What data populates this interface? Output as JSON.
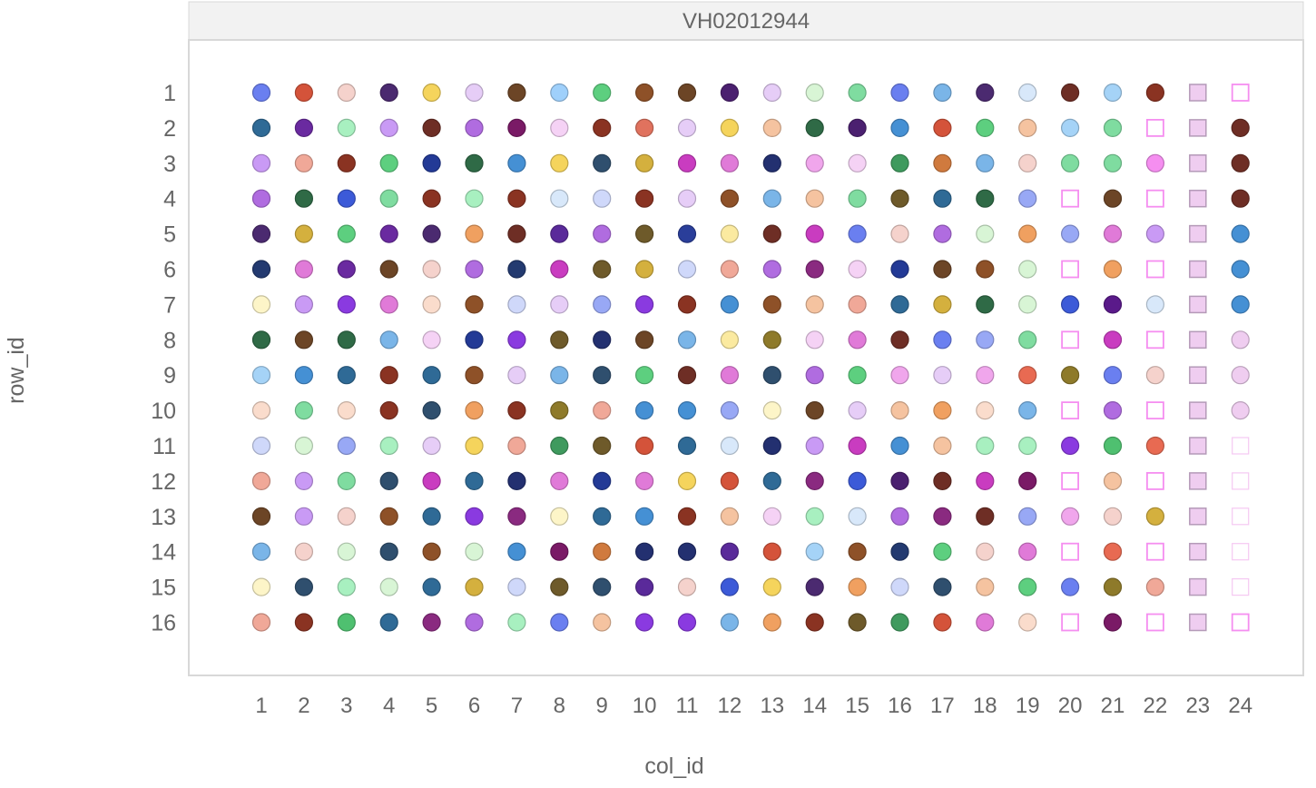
{
  "chart_data": {
    "type": "scatter",
    "title": "VH02012944",
    "xlabel": "col_id",
    "ylabel": "row_id",
    "x_ticks": [
      "1",
      "2",
      "3",
      "4",
      "5",
      "6",
      "7",
      "8",
      "9",
      "10",
      "11",
      "12",
      "13",
      "14",
      "15",
      "16",
      "17",
      "18",
      "19",
      "20",
      "21",
      "22",
      "23",
      "24"
    ],
    "y_ticks": [
      "1",
      "2",
      "3",
      "4",
      "5",
      "6",
      "7",
      "8",
      "9",
      "10",
      "11",
      "12",
      "13",
      "14",
      "15",
      "16"
    ],
    "xlim": [
      1,
      24
    ],
    "ylim": [
      1,
      16
    ],
    "y_reversed": true,
    "grid": false,
    "legend": "none",
    "note_marks": "each point is a well at (col_id, row_id); color encodes well content; markers: c = filled circle, o = open square, s = filled light square, f = faint open square",
    "rows": [
      {
        "row_id": 1,
        "wells": [
          "c:#6a7ff0",
          "c:#d4533a",
          "c:#f5d2cc",
          "c:#4b2a70",
          "c:#f5d45c",
          "c:#e6cdf7",
          "c:#6c4526",
          "c:#9fd0fb",
          "c:#5dcf7f",
          "c:#8e5128",
          "c:#6c4526",
          "c:#4b2070",
          "c:#e6cdf7",
          "c:#d8f5d5",
          "c:#7fdca0",
          "c:#6a7ff0",
          "c:#7ab5e8",
          "c:#4b2a70",
          "c:#d8e8fa",
          "c:#6e2e25",
          "c:#a5d3f7",
          "c:#8a3322",
          "s:#efcdf0",
          "o:#f58ef0"
        ]
      },
      {
        "row_id": 2,
        "wells": [
          "c:#2f6a96",
          "c:#6a2aa0",
          "c:#a8f0c0",
          "c:#c99af5",
          "c:#6e2e25",
          "c:#b06ce0",
          "c:#7a1a66",
          "c:#f5d2f5",
          "c:#8a3322",
          "c:#e0725e",
          "c:#e6cdf7",
          "c:#f5d45c",
          "c:#f5c3a0",
          "c:#2f6a46",
          "c:#4b2070",
          "c:#4590d4",
          "c:#d4533a",
          "c:#5dcf7f",
          "c:#f5c3a0",
          "c:#a5d3f7",
          "c:#7fdca0",
          "o:#f58ef0",
          "s:#efcdf0",
          "c:#6e2e25"
        ]
      },
      {
        "row_id": 3,
        "wells": [
          "c:#c99af5",
          "c:#f0a898",
          "c:#8a3322",
          "c:#5dcf7f",
          "c:#233a96",
          "c:#2f6a46",
          "c:#4590d4",
          "c:#f5d45c",
          "c:#2f4f6e",
          "c:#d4b03e",
          "c:#c93cc0",
          "c:#e07ad8",
          "c:#233070",
          "c:#f0a6ec",
          "c:#f5d2f5",
          "c:#3f9a5e",
          "c:#d07a3e",
          "c:#7ab5e8",
          "c:#f5d2cc",
          "c:#7fdca0",
          "c:#7fdca0",
          "c:#f58ef0",
          "s:#efcdf0",
          "c:#6e2e25"
        ]
      },
      {
        "row_id": 4,
        "wells": [
          "c:#b06ce0",
          "c:#2f6a46",
          "c:#3c5ad8",
          "c:#7fdca0",
          "c:#8a3322",
          "c:#a8f0c0",
          "c:#8a3322",
          "c:#d8e8fa",
          "c:#cfd8fa",
          "c:#8a3322",
          "c:#e6cdf7",
          "c:#8e5128",
          "c:#7ab5e8",
          "c:#f5c3a0",
          "c:#7fdca0",
          "c:#6e5a2a",
          "c:#2f6a96",
          "c:#2f6a46",
          "c:#98a8f5",
          "o:#f58ef0",
          "c:#6c4526",
          "o:#f58ef0",
          "s:#efcdf0",
          "c:#6e2e25"
        ]
      },
      {
        "row_id": 5,
        "wells": [
          "c:#4b2a70",
          "c:#d4b03e",
          "c:#5dcf7f",
          "c:#6a2aa0",
          "c:#4b2a70",
          "c:#f0a060",
          "c:#6e2e25",
          "c:#5a2a9a",
          "c:#b06ce0",
          "c:#6e5a2a",
          "c:#2a3e9a",
          "c:#fbeaa0",
          "c:#6e2e25",
          "c:#c93cc0",
          "c:#6a7ff0",
          "c:#f5d2cc",
          "c:#b06ce0",
          "c:#d8f5d5",
          "c:#f0a060",
          "c:#98a8f5",
          "c:#e07ad8",
          "c:#c99af5",
          "s:#efcdf0",
          "c:#4590d4"
        ]
      },
      {
        "row_id": 6,
        "wells": [
          "c:#233a70",
          "c:#e07ad8",
          "c:#6a2aa0",
          "c:#6c4526",
          "c:#f5d2cc",
          "c:#b06ce0",
          "c:#233a70",
          "c:#c93cc0",
          "c:#6e5a2a",
          "c:#d4b03e",
          "c:#cfd8fa",
          "c:#f0a898",
          "c:#b06ce0",
          "c:#8a2a80",
          "c:#f5d2f5",
          "c:#233a96",
          "c:#6c4526",
          "c:#8e5128",
          "c:#d8f5d5",
          "o:#f58ef0",
          "c:#f0a060",
          "o:#f58ef0",
          "s:#efcdf0",
          "c:#4590d4"
        ]
      },
      {
        "row_id": 7,
        "wells": [
          "c:#fdf5c8",
          "c:#c99af5",
          "c:#8a3ae0",
          "c:#e07ad8",
          "c:#fadccc",
          "c:#8e5128",
          "c:#cfd8fa",
          "c:#e6cdf7",
          "c:#98a8f5",
          "c:#8a3ae0",
          "c:#8a3322",
          "c:#4590d4",
          "c:#8e5128",
          "c:#f5c3a0",
          "c:#f0a898",
          "c:#2f6a96",
          "c:#d4b03e",
          "c:#2f6a46",
          "c:#d8f5d5",
          "c:#3c5ad8",
          "c:#5a1a8a",
          "c:#d8e8fa",
          "s:#efcdf0",
          "c:#4590d4"
        ]
      },
      {
        "row_id": 8,
        "wells": [
          "c:#2f6a46",
          "c:#6c4526",
          "c:#2f6a46",
          "c:#7ab5e8",
          "c:#f5d2f5",
          "c:#233a96",
          "c:#8a3ae0",
          "c:#6e5a2a",
          "c:#233070",
          "c:#6c4526",
          "c:#7ab5e8",
          "c:#fbeaa0",
          "c:#8e7a2a",
          "c:#f5d2f5",
          "c:#e07ad8",
          "c:#6e2e25",
          "c:#6a7ff0",
          "c:#98a8f5",
          "c:#7fdca0",
          "o:#f58ef0",
          "c:#c93cc0",
          "o:#f58ef0",
          "s:#efcdf0",
          "c:#efcdf0"
        ]
      },
      {
        "row_id": 9,
        "wells": [
          "c:#a5d3f7",
          "c:#4590d4",
          "c:#2f6a96",
          "c:#8a3322",
          "c:#2f6a96",
          "c:#8e5128",
          "c:#e6cdf7",
          "c:#7ab5e8",
          "c:#2f4f6e",
          "c:#5dcf7f",
          "c:#6e2e25",
          "c:#e07ad8",
          "c:#2f4f6e",
          "c:#b06ce0",
          "c:#5dcf7f",
          "c:#f0a6ec",
          "c:#e6cdf7",
          "c:#f0a6ec",
          "c:#e86a52",
          "c:#8e7a2a",
          "c:#6a7ff0",
          "c:#f5d2cc",
          "s:#efcdf0",
          "c:#efcdf0"
        ]
      },
      {
        "row_id": 10,
        "wells": [
          "c:#fadccc",
          "c:#7fdca0",
          "c:#fadccc",
          "c:#8a3322",
          "c:#2f4f6e",
          "c:#f0a060",
          "c:#8a3322",
          "c:#8e7a2a",
          "c:#f0a898",
          "c:#4590d4",
          "c:#4590d4",
          "c:#98a8f5",
          "c:#fdf5c8",
          "c:#6c4526",
          "c:#e6cdf7",
          "c:#f5c3a0",
          "c:#f0a060",
          "c:#fadccc",
          "c:#7ab5e8",
          "o:#f58ef0",
          "c:#b06ce0",
          "o:#f58ef0",
          "s:#efcdf0",
          "c:#efcdf0"
        ]
      },
      {
        "row_id": 11,
        "wells": [
          "c:#cfd8fa",
          "c:#d8f5d5",
          "c:#98a8f5",
          "c:#a8f0c0",
          "c:#e6cdf7",
          "c:#f5d45c",
          "c:#f0a898",
          "c:#3f9a5e",
          "c:#6e5a2a",
          "c:#d4533a",
          "c:#2f6a96",
          "c:#d8e8fa",
          "c:#233070",
          "c:#c99af5",
          "c:#c93cc0",
          "c:#4590d4",
          "c:#f5c3a0",
          "c:#a8f0c0",
          "c:#a8f0c0",
          "c:#8a3ae0",
          "c:#4fc070",
          "c:#e86a52",
          "s:#efcdf0",
          "f:#f5c8f2"
        ]
      },
      {
        "row_id": 12,
        "wells": [
          "c:#f0a898",
          "c:#c99af5",
          "c:#7fdca0",
          "c:#2f4f6e",
          "c:#c93cc0",
          "c:#2f6a96",
          "c:#233070",
          "c:#e07ad8",
          "c:#233a96",
          "c:#e07ad8",
          "c:#f5d45c",
          "c:#d4533a",
          "c:#2f6a96",
          "c:#8a2a80",
          "c:#3c5ad8",
          "c:#4b2070",
          "c:#6e2e25",
          "c:#c93cc0",
          "c:#7a1a66",
          "o:#f58ef0",
          "c:#f5c3a0",
          "o:#f58ef0",
          "s:#efcdf0",
          "f:#f5c8f2"
        ]
      },
      {
        "row_id": 13,
        "wells": [
          "c:#6c4526",
          "c:#c99af5",
          "c:#f5d2cc",
          "c:#8e5128",
          "c:#2f6a96",
          "c:#8a3ae0",
          "c:#8a2a80",
          "c:#fdf5c8",
          "c:#2f6a96",
          "c:#4590d4",
          "c:#8a3322",
          "c:#f5c3a0",
          "c:#f5d2f5",
          "c:#a8f0c0",
          "c:#d8e8fa",
          "c:#b06ce0",
          "c:#8a2a80",
          "c:#6e2e25",
          "c:#98a8f5",
          "c:#f0a6ec",
          "c:#f5d2cc",
          "c:#d4b03e",
          "s:#efcdf0",
          "f:#f5c8f2"
        ]
      },
      {
        "row_id": 14,
        "wells": [
          "c:#7ab5e8",
          "c:#f5d2cc",
          "c:#d8f5d5",
          "c:#2f4f6e",
          "c:#8e5128",
          "c:#d8f5d5",
          "c:#4590d4",
          "c:#7a1a66",
          "c:#d07a3e",
          "c:#233070",
          "c:#233070",
          "c:#5a2a9a",
          "c:#d4533a",
          "c:#a5d3f7",
          "c:#8e5128",
          "c:#233a70",
          "c:#5dcf7f",
          "c:#f5d2cc",
          "c:#e07ad8",
          "o:#f58ef0",
          "c:#e86a52",
          "o:#f58ef0",
          "s:#efcdf0",
          "f:#f5c8f2"
        ]
      },
      {
        "row_id": 15,
        "wells": [
          "c:#fdf5c8",
          "c:#2f4f6e",
          "c:#a8f0c0",
          "c:#d8f5d5",
          "c:#2f6a96",
          "c:#d4b03e",
          "c:#cfd8fa",
          "c:#6e5a2a",
          "c:#2f4f6e",
          "c:#5a2a9a",
          "c:#f5d2cc",
          "c:#3c5ad8",
          "c:#f5d45c",
          "c:#4b2a70",
          "c:#f0a060",
          "c:#cfd8fa",
          "c:#2f4f6e",
          "c:#f5c3a0",
          "c:#5dcf7f",
          "c:#6a7ff0",
          "c:#8e7a2a",
          "c:#f0a898",
          "s:#efcdf0",
          "f:#f5c8f2"
        ]
      },
      {
        "row_id": 16,
        "wells": [
          "c:#f0a898",
          "c:#8a3322",
          "c:#4fc070",
          "c:#2f6a96",
          "c:#8a2a80",
          "c:#b06ce0",
          "c:#a8f0c0",
          "c:#6a7ff0",
          "c:#f5c3a0",
          "c:#8a3ae0",
          "c:#8a3ae0",
          "c:#7ab5e8",
          "c:#f0a060",
          "c:#8a3322",
          "c:#6e5a2a",
          "c:#3f9a5e",
          "c:#d4533a",
          "c:#e07ad8",
          "c:#fadccc",
          "o:#f58ef0",
          "c:#7a1a66",
          "o:#f58ef0",
          "s:#efcdf0",
          "o:#f58ef0"
        ]
      }
    ]
  }
}
